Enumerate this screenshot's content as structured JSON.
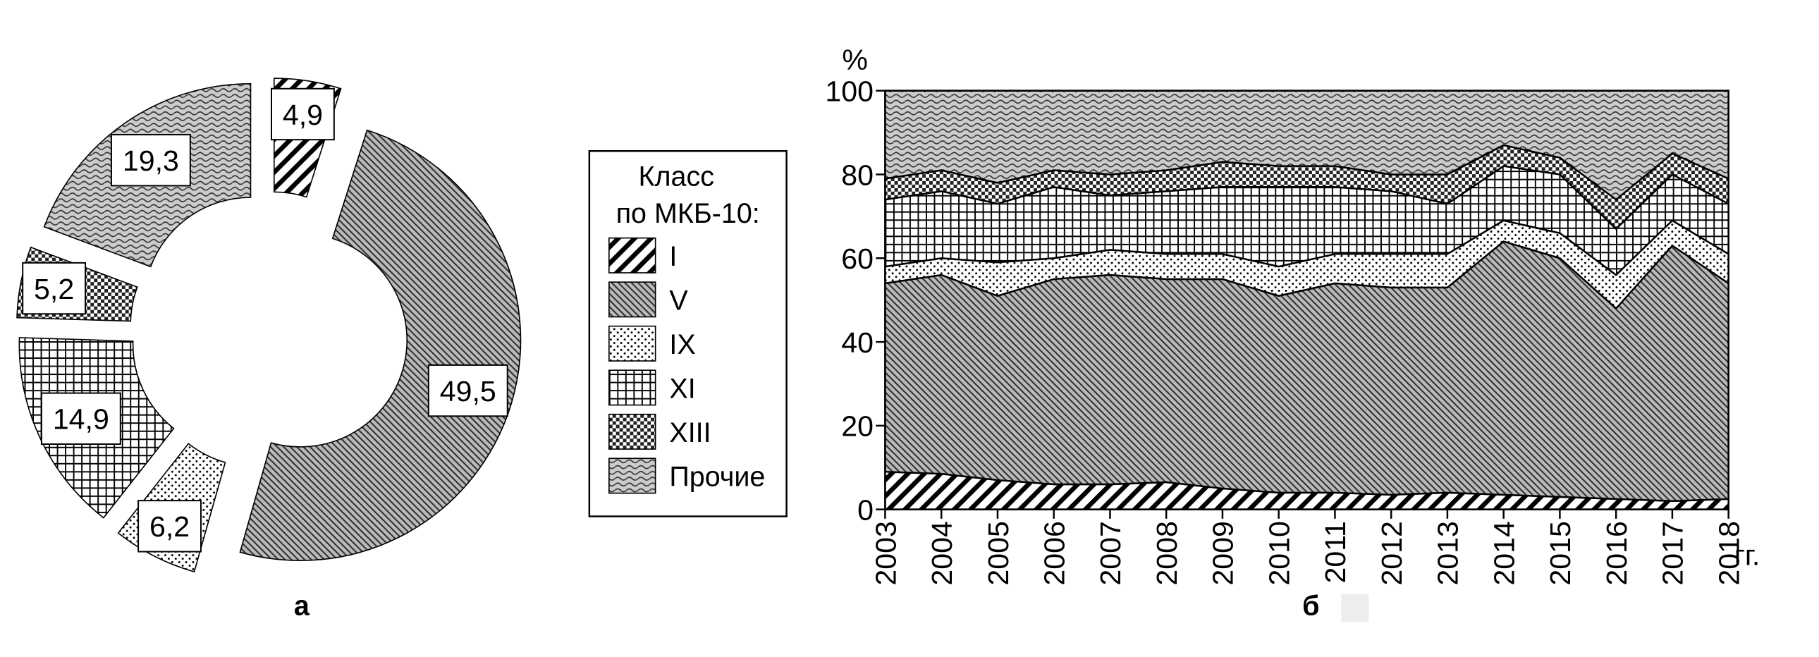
{
  "chart_data": [
    {
      "type": "pie",
      "label": "а",
      "categories": [
        "I",
        "V",
        "IX",
        "XI",
        "XIII",
        "Прочие"
      ],
      "values": [
        4.9,
        49.5,
        6.2,
        14.9,
        5.2,
        19.3
      ],
      "value_labels": [
        "4,9",
        "49,5",
        "6,2",
        "14,9",
        "5,2",
        "19,3"
      ],
      "patterns": [
        "hatch-coarse",
        "hatch-fine",
        "dots",
        "grid",
        "checker",
        "wave"
      ]
    },
    {
      "type": "area",
      "stacked": true,
      "label": "б",
      "ylabel": "%",
      "xlabel": "гг.",
      "x": [
        2003,
        2004,
        2005,
        2006,
        2007,
        2008,
        2009,
        2010,
        2011,
        2012,
        2013,
        2014,
        2015,
        2016,
        2017,
        2018
      ],
      "ylim": [
        0,
        100
      ],
      "yticks": [
        0,
        20,
        40,
        60,
        80,
        100
      ],
      "series": [
        {
          "name": "I",
          "pattern": "hatch-coarse",
          "values": [
            9,
            8.5,
            7,
            6,
            6,
            6.5,
            5,
            4,
            4,
            3.5,
            4,
            3.5,
            3,
            2.5,
            2,
            2.5
          ]
        },
        {
          "name": "V",
          "pattern": "hatch-fine",
          "values": [
            45,
            47.5,
            44,
            49,
            50,
            48.5,
            50,
            47,
            50,
            49.5,
            49,
            60.5,
            57,
            45.5,
            61,
            51.5
          ]
        },
        {
          "name": "IX",
          "pattern": "dots",
          "values": [
            4,
            4,
            8,
            5,
            6,
            6,
            6,
            7,
            7,
            8,
            8,
            5,
            6,
            8,
            6,
            7
          ]
        },
        {
          "name": "XI",
          "pattern": "grid",
          "values": [
            16,
            16,
            14,
            17,
            13,
            15,
            16,
            19,
            16,
            15,
            12,
            13,
            14,
            11,
            11,
            12
          ]
        },
        {
          "name": "XIII",
          "pattern": "checker",
          "values": [
            5,
            5,
            5,
            4,
            5,
            5,
            6,
            5,
            5,
            4,
            7,
            5,
            4,
            7,
            5,
            6
          ]
        },
        {
          "name": "Прочие",
          "pattern": "wave",
          "values": [
            21,
            19,
            22,
            19,
            20,
            19,
            17,
            18,
            18,
            20,
            20,
            13,
            16,
            26,
            15,
            21
          ]
        }
      ]
    }
  ],
  "legend": {
    "title": [
      "Класс",
      "по МКБ-10:"
    ]
  }
}
